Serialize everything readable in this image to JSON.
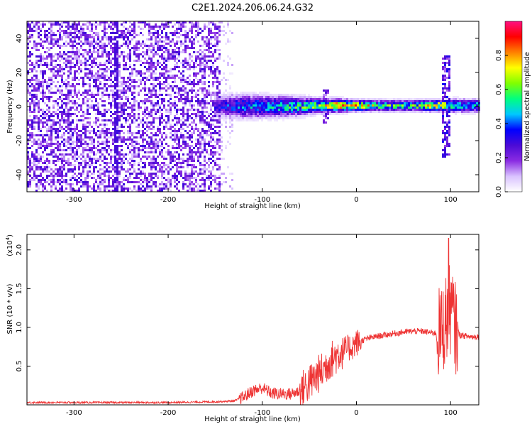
{
  "page": {
    "title": "C2E1.2024.206.06.24.G32"
  },
  "chart_data": [
    {
      "type": "heatmap",
      "xlabel": "Height of straight line (km)",
      "ylabel": "Frequency (Hz)",
      "xlim": [
        -350,
        130
      ],
      "ylim": [
        -50,
        50
      ],
      "xticks": [
        -300,
        -200,
        -100,
        0,
        100
      ],
      "yticks": [
        -40,
        -20,
        0,
        20,
        40
      ],
      "colorbar": {
        "label": "Normalized spectral amplitude",
        "range": [
          0,
          1
        ],
        "ticks": [
          0.0,
          0.2,
          0.4,
          0.6,
          0.8
        ],
        "colormap": [
          "#ffffff",
          "#d9c2ff",
          "#8a2be2",
          "#4b0bd6",
          "#0000ff",
          "#00c8ff",
          "#00ff80",
          "#80ff00",
          "#ffff00",
          "#ff8000",
          "#ff0000",
          "#ff1080"
        ]
      },
      "noise_region": {
        "x_range": [
          -350,
          -145
        ],
        "y_range": [
          -50,
          50
        ],
        "amplitude": 0.25
      },
      "faint_vertical_line": {
        "x": -255,
        "y_range": [
          -50,
          50
        ]
      },
      "signal_band": [
        {
          "x": -150,
          "center": 0.0,
          "width": 6.0,
          "peak": 0.3
        },
        {
          "x": -120,
          "center": 0.0,
          "width": 6.5,
          "peak": 0.4
        },
        {
          "x": -90,
          "center": 0.0,
          "width": 6.0,
          "peak": 0.45
        },
        {
          "x": -60,
          "center": 0.0,
          "width": 5.0,
          "peak": 0.55
        },
        {
          "x": -40,
          "center": 0.5,
          "width": 4.0,
          "peak": 0.6
        },
        {
          "x": -20,
          "center": 0.5,
          "width": 3.5,
          "peak": 0.8
        },
        {
          "x": 0,
          "center": 0.5,
          "width": 3.0,
          "peak": 0.75
        },
        {
          "x": 30,
          "center": 0.5,
          "width": 3.0,
          "peak": 0.55
        },
        {
          "x": 60,
          "center": 0.5,
          "width": 3.0,
          "peak": 0.55
        },
        {
          "x": 85,
          "center": 0.5,
          "width": 3.0,
          "peak": 0.8
        },
        {
          "x": 100,
          "center": 0.5,
          "width": 3.5,
          "peak": 0.6
        },
        {
          "x": 130,
          "center": 0.5,
          "width": 3.5,
          "peak": 0.45
        }
      ],
      "features": [
        {
          "type": "spike",
          "x": 95,
          "y_range": [
            -30,
            30
          ],
          "amplitude": 0.35
        },
        {
          "type": "spike",
          "x": -32,
          "y_range": [
            -10,
            10
          ],
          "amplitude": 0.3
        }
      ]
    },
    {
      "type": "line",
      "xlabel": "Height of straight line (km)",
      "ylabel": "SNR (10 * v/v)",
      "y_exponent_label": "(x10",
      "y_exponent_power": "4",
      "y_exponent_close": ")",
      "xlim": [
        -350,
        130
      ],
      "ylim": [
        0,
        2.2
      ],
      "xticks": [
        -300,
        -200,
        -100,
        0,
        100
      ],
      "yticks": [
        0.5,
        1.0,
        1.5,
        2.0
      ],
      "ytick_labels": [
        "0.5",
        "1.0",
        "1.5",
        "2.0"
      ],
      "color": "#ee3333",
      "series": [
        {
          "x": [
            -350,
            -300,
            -250,
            -200,
            -150,
            -130,
            -120,
            -110,
            -100,
            -90,
            -80,
            -70,
            -60,
            -50,
            -40,
            -35,
            -30,
            -25,
            -20,
            -15,
            -10,
            -5,
            0,
            10,
            20,
            30,
            40,
            50,
            60,
            70,
            80,
            90,
            95,
            100,
            105,
            110,
            120,
            130
          ],
          "y": [
            0.03,
            0.03,
            0.03,
            0.03,
            0.04,
            0.05,
            0.1,
            0.18,
            0.22,
            0.15,
            0.14,
            0.14,
            0.18,
            0.28,
            0.4,
            0.45,
            0.55,
            0.6,
            0.65,
            0.7,
            0.72,
            0.75,
            0.8,
            0.85,
            0.88,
            0.9,
            0.92,
            0.94,
            0.95,
            0.95,
            0.93,
            0.92,
            1.1,
            1.25,
            1.0,
            0.9,
            0.88,
            0.88
          ]
        }
      ],
      "noise": [
        {
          "x_range": [
            -350,
            -125
          ],
          "amp": 0.012
        },
        {
          "x_range": [
            -125,
            -60
          ],
          "amp": 0.08
        },
        {
          "x_range": [
            -60,
            -15
          ],
          "amp": 0.25
        },
        {
          "x_range": [
            -15,
            5
          ],
          "amp": 0.18
        },
        {
          "x_range": [
            5,
            85
          ],
          "amp": 0.04
        },
        {
          "x_range": [
            85,
            108
          ],
          "amp": 0.6
        },
        {
          "x_range": [
            108,
            130
          ],
          "amp": 0.04
        }
      ],
      "peak_spike": {
        "x": 98,
        "y": 2.15
      }
    }
  ]
}
